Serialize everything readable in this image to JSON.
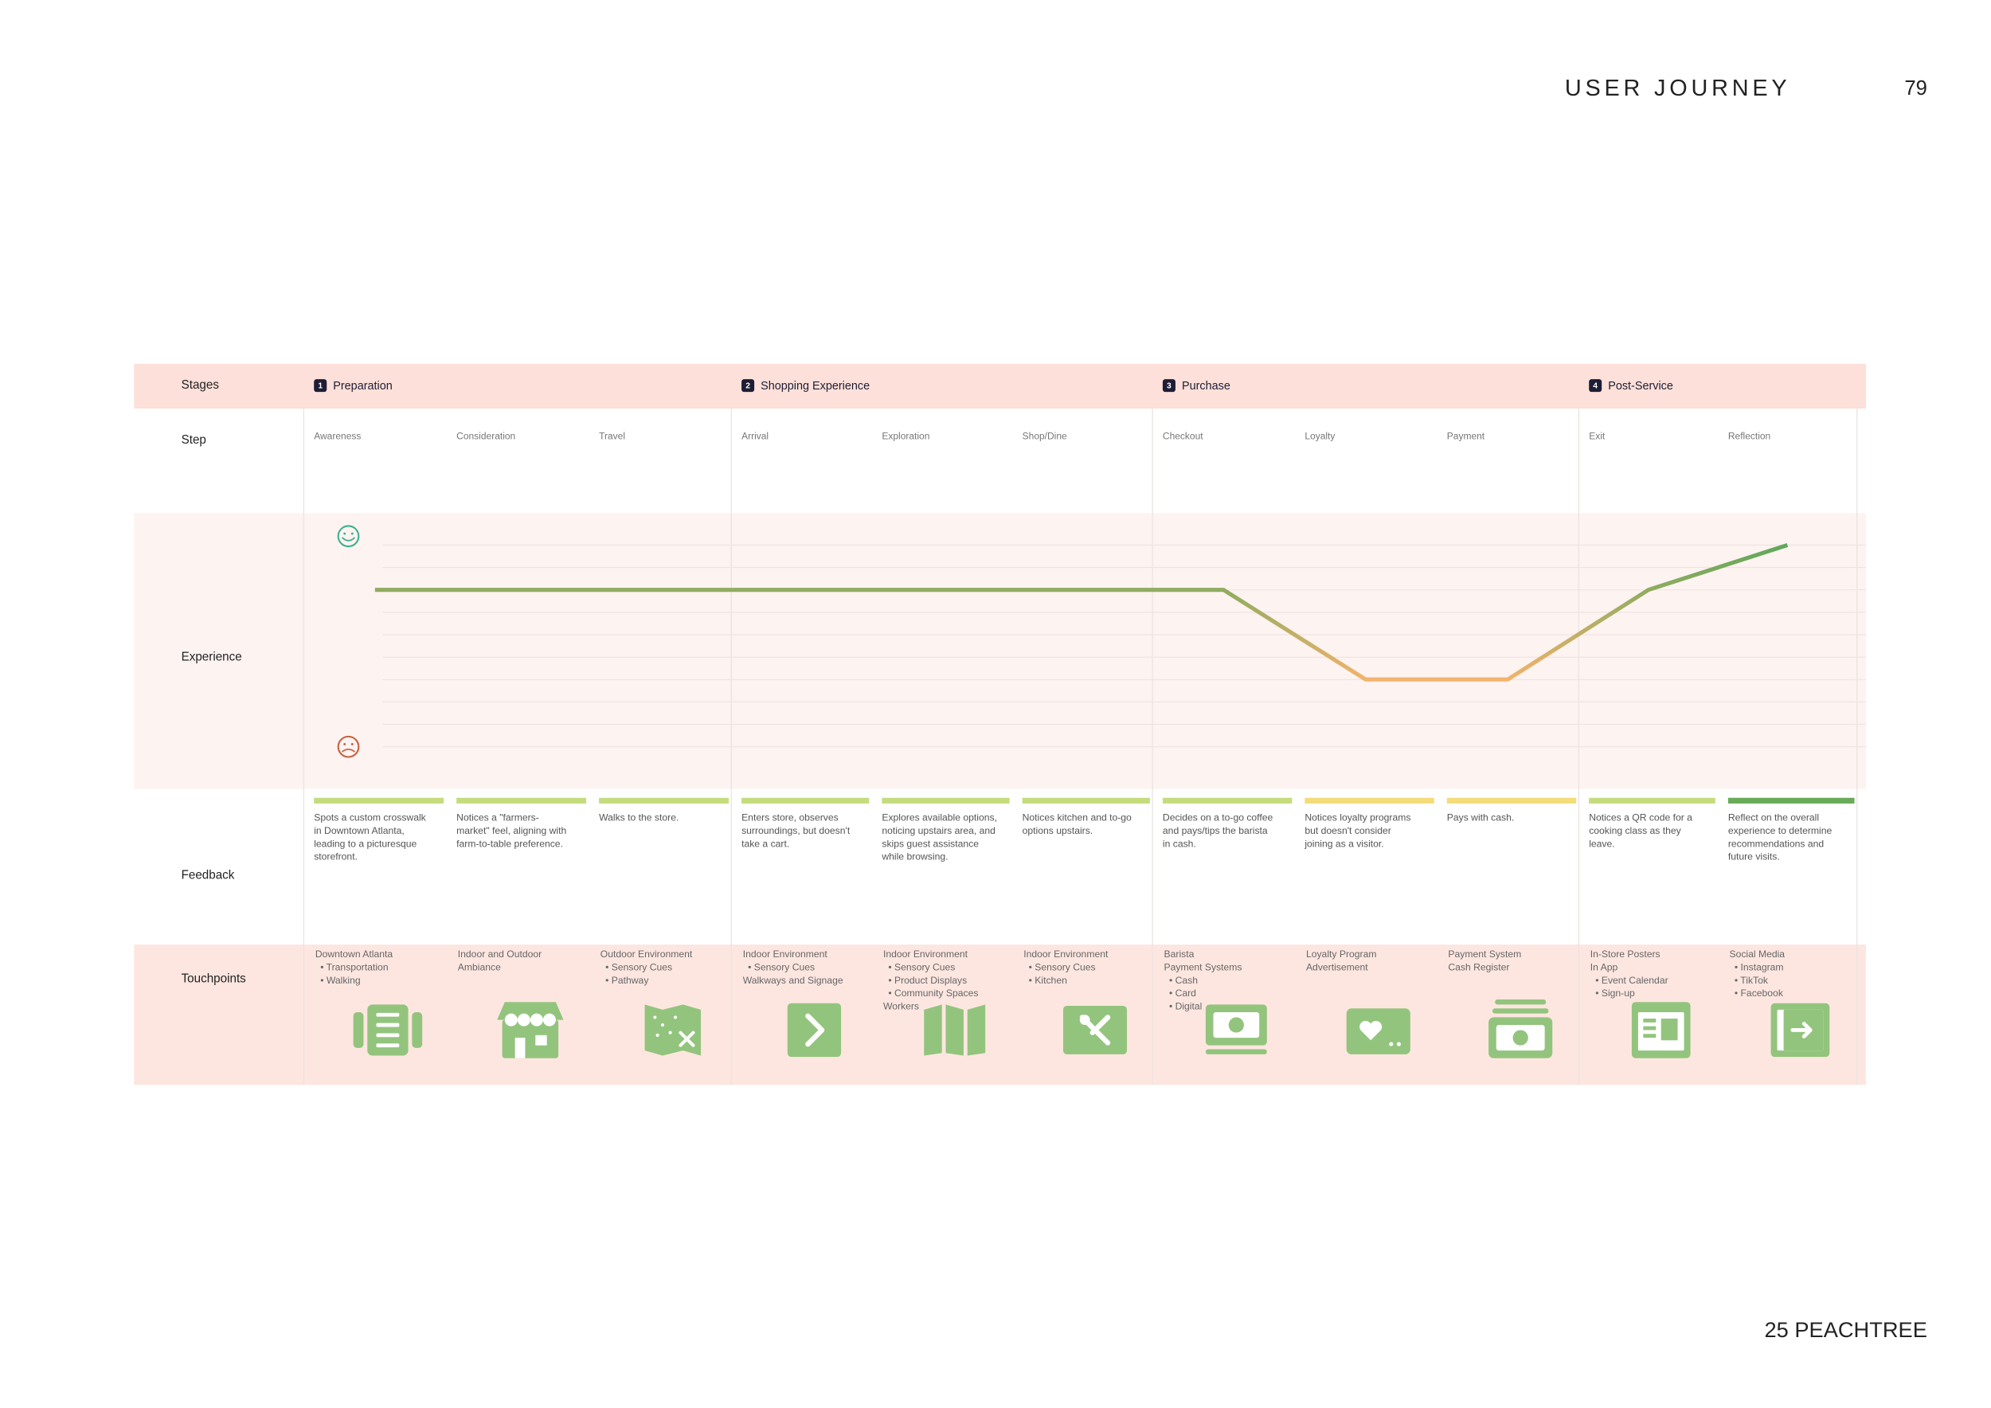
{
  "header": {
    "title": "USER JOURNEY",
    "page": "79"
  },
  "footer": "25 PEACHTREE",
  "journey": {
    "row_labels": [
      "Stages",
      "Step",
      "Experience",
      "Feedback",
      "Touchpoints"
    ],
    "experience": {
      "ylim": [
        0,
        9
      ],
      "yticks": [
        0,
        1,
        2,
        3,
        4,
        5,
        6,
        7,
        8,
        9
      ],
      "high_color": "#5fa85a",
      "low_color": "#f3b36c"
    },
    "stages": [
      {
        "number": "1",
        "name": "Preparation",
        "steps": [
          {
            "name": "Awareness",
            "experience": 7,
            "feedback_color": "#c5dc7e",
            "feedback": [
              "Spots a custom crosswalk",
              "in Downtown Atlanta,",
              "leading to a picturesque",
              "storefront."
            ],
            "touchpoints": [
              "Downtown Atlanta",
              "• Transportation",
              "• Walking"
            ]
          },
          {
            "name": "Consideration",
            "experience": 7,
            "feedback_color": "#c5dc7e",
            "feedback": [
              "Notices a \"farmers-",
              "market\" feel, aligning with",
              "farm-to-table preference."
            ],
            "touchpoints": [
              "Indoor and Outdoor",
              "Ambiance"
            ]
          },
          {
            "name": "Travel",
            "experience": 7,
            "feedback_color": "#c5dc7e",
            "feedback": [
              "Walks to the store."
            ],
            "touchpoints": [
              "Outdoor Environment",
              "• Sensory Cues",
              "• Pathway"
            ]
          }
        ]
      },
      {
        "number": "2",
        "name": "Shopping Experience",
        "steps": [
          {
            "name": "Arrival",
            "experience": 7,
            "feedback_color": "#c5dc7e",
            "feedback": [
              "Enters store, observes",
              "surroundings, but doesn't",
              "take a cart."
            ],
            "touchpoints": [
              "Indoor Environment",
              "• Sensory Cues",
              "Walkways and Signage"
            ]
          },
          {
            "name": "Exploration",
            "experience": 7,
            "feedback_color": "#c5dc7e",
            "feedback": [
              "Explores available options,",
              "noticing upstairs area, and",
              "skips guest assistance",
              "while browsing."
            ],
            "touchpoints": [
              "Indoor Environment",
              "• Sensory Cues",
              "• Product Displays",
              "• Community Spaces",
              "Workers"
            ]
          },
          {
            "name": "Shop/Dine",
            "experience": 7,
            "feedback_color": "#c5dc7e",
            "feedback": [
              "Notices kitchen and to-go",
              "options upstairs."
            ],
            "touchpoints": [
              "Indoor Environment",
              "• Sensory Cues",
              "• Kitchen"
            ]
          }
        ]
      },
      {
        "number": "3",
        "name": "Purchase",
        "steps": [
          {
            "name": "Checkout",
            "experience": 7,
            "feedback_color": "#c5dc7e",
            "feedback": [
              "Decides on a to-go coffee",
              "and pays/tips the barista",
              "in cash."
            ],
            "touchpoints": [
              "Barista",
              "Payment Systems",
              "• Cash",
              "• Card",
              "• Digital"
            ]
          },
          {
            "name": "Loyalty",
            "experience": 3,
            "feedback_color": "#f5dc7a",
            "feedback": [
              "Notices loyalty programs",
              "but doesn't consider",
              "joining as a visitor."
            ],
            "touchpoints": [
              "Loyalty Program",
              "Advertisement"
            ]
          },
          {
            "name": "Payment",
            "experience": 3,
            "feedback_color": "#f5dc7a",
            "feedback": [
              "Pays with cash."
            ],
            "touchpoints": [
              "Payment System",
              "Cash Register"
            ]
          }
        ]
      },
      {
        "number": "4",
        "name": "Post-Service",
        "steps": [
          {
            "name": "Exit",
            "experience": 7,
            "feedback_color": "#c5dc7e",
            "feedback": [
              "Notices a QR code for a",
              "cooking class as they",
              "leave."
            ],
            "touchpoints": [
              "In-Store Posters",
              "In App",
              "• Event Calendar",
              "• Sign-up"
            ]
          },
          {
            "name": "Reflection",
            "experience": 9,
            "feedback_color": "#6aab5a",
            "feedback": [
              "Reflect on the overall",
              "experience to determine",
              "recommendations and",
              "future visits."
            ],
            "touchpoints": [
              "Social Media",
              "• Instagram",
              "• TikTok",
              "• Facebook"
            ]
          }
        ]
      }
    ]
  }
}
